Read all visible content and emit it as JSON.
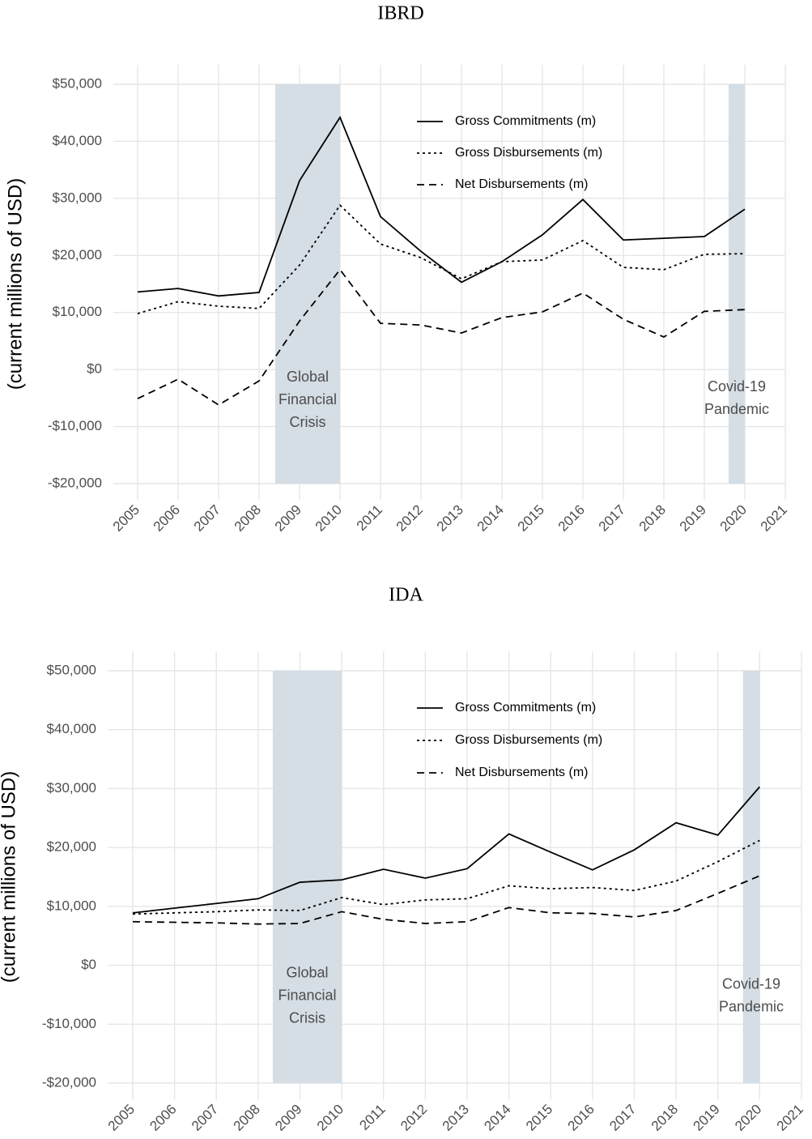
{
  "chart_data": [
    {
      "type": "line",
      "title": "IBRD",
      "y_label": "(current millions of USD)",
      "x": [
        2005,
        2006,
        2007,
        2008,
        2009,
        2010,
        2011,
        2012,
        2013,
        2014,
        2015,
        2016,
        2017,
        2018,
        2019,
        2020
      ],
      "series": [
        {
          "name": "Gross Commitments (m)",
          "color": "#000000",
          "dash": "solid",
          "values": [
            13600,
            14200,
            12900,
            13500,
            33100,
            44200,
            26800,
            20700,
            15300,
            18900,
            23600,
            29800,
            22700,
            23000,
            23300,
            28100
          ]
        },
        {
          "name": "Gross Disbursements (m)",
          "color": "#000000",
          "dash": "dotted",
          "values": [
            9800,
            11900,
            11100,
            10700,
            18300,
            28800,
            22000,
            19600,
            15900,
            18900,
            19200,
            22600,
            17900,
            17500,
            20200,
            20300
          ]
        },
        {
          "name": "Net Disbursements (m)",
          "color": "#000000",
          "dash": "dashed",
          "values": [
            -5100,
            -1700,
            -6200,
            -2000,
            8500,
            17500,
            8100,
            7800,
            6400,
            9100,
            10100,
            13400,
            8800,
            5700,
            10200,
            10500
          ]
        }
      ],
      "spans": [
        {
          "label_lines": [
            "Global",
            "Financial",
            "Crisis"
          ],
          "xlim": [
            2008.4,
            2010
          ],
          "color": "#d5dde5",
          "label_color": "#4e6e8e"
        },
        {
          "label_lines": [
            "Covid-19",
            "Pandemic"
          ],
          "xlim": [
            2019.6,
            2020
          ],
          "color": "#d5dde5",
          "label_color": "#4e6e8e"
        }
      ],
      "xlim": [
        2004.4,
        2021
      ],
      "xticks": [
        2005,
        2006,
        2007,
        2008,
        2009,
        2010,
        2011,
        2012,
        2013,
        2014,
        2015,
        2016,
        2017,
        2018,
        2019,
        2020,
        2021
      ],
      "ylim": [
        -20000,
        50000
      ],
      "yticks": [
        {
          "value": -20000,
          "label": "-$20,000"
        },
        {
          "value": -10000,
          "label": "-$10,000"
        },
        {
          "value": 0,
          "label": "$0"
        },
        {
          "value": 10000,
          "label": "$10,000"
        },
        {
          "value": 20000,
          "label": "$20,000"
        },
        {
          "value": 30000,
          "label": "$30,000"
        },
        {
          "value": 40000,
          "label": "$40,000"
        },
        {
          "value": 50000,
          "label": "$50,000"
        }
      ],
      "grid": true
    },
    {
      "type": "line",
      "title": "IDA",
      "y_label": "(current millions of USD)",
      "x": [
        2005,
        2006,
        2007,
        2008,
        2009,
        2010,
        2011,
        2012,
        2013,
        2014,
        2015,
        2016,
        2017,
        2018,
        2019,
        2020
      ],
      "series": [
        {
          "name": "Gross Commitments (m)",
          "color": "#000000",
          "dash": "solid",
          "values": [
            8900,
            9700,
            10500,
            11300,
            14100,
            14500,
            16300,
            14800,
            16400,
            22300,
            19200,
            16200,
            19600,
            24200,
            22100,
            30300
          ]
        },
        {
          "name": "Gross Disbursements (m)",
          "color": "#000000",
          "dash": "dotted",
          "values": [
            8700,
            8900,
            9100,
            9400,
            9300,
            11500,
            10300,
            11100,
            11300,
            13500,
            13000,
            13200,
            12700,
            14300,
            17600,
            21200
          ]
        },
        {
          "name": "Net Disbursements (m)",
          "color": "#000000",
          "dash": "dashed",
          "values": [
            7400,
            7300,
            7200,
            7000,
            7100,
            9100,
            7800,
            7100,
            7400,
            9800,
            8900,
            8800,
            8200,
            9300,
            12200,
            15200
          ]
        }
      ],
      "spans": [
        {
          "label_lines": [
            "Global",
            "Financial",
            "Crisis"
          ],
          "xlim": [
            2008.35,
            2010
          ],
          "color": "#d5dde5",
          "label_color": "#4e6e8e"
        },
        {
          "label_lines": [
            "Covid-19",
            "Pandemic"
          ],
          "xlim": [
            2019.6,
            2020
          ],
          "color": "#d5dde5",
          "label_color": "#4e6e8e"
        }
      ],
      "xlim": [
        2004.4,
        2021
      ],
      "xticks": [
        2005,
        2006,
        2007,
        2008,
        2009,
        2010,
        2011,
        2012,
        2013,
        2014,
        2015,
        2016,
        2017,
        2018,
        2019,
        2020,
        2021
      ],
      "ylim": [
        -20000,
        50000
      ],
      "yticks": [
        {
          "value": -20000,
          "label": "-$20,000"
        },
        {
          "value": -10000,
          "label": "-$10,000"
        },
        {
          "value": 0,
          "label": "$0"
        },
        {
          "value": 10000,
          "label": "$10,000"
        },
        {
          "value": 20000,
          "label": "$20,000"
        },
        {
          "value": 30000,
          "label": "$30,000"
        },
        {
          "value": 40000,
          "label": "$40,000"
        },
        {
          "value": 50000,
          "label": "$50,000"
        }
      ],
      "grid": true
    }
  ]
}
